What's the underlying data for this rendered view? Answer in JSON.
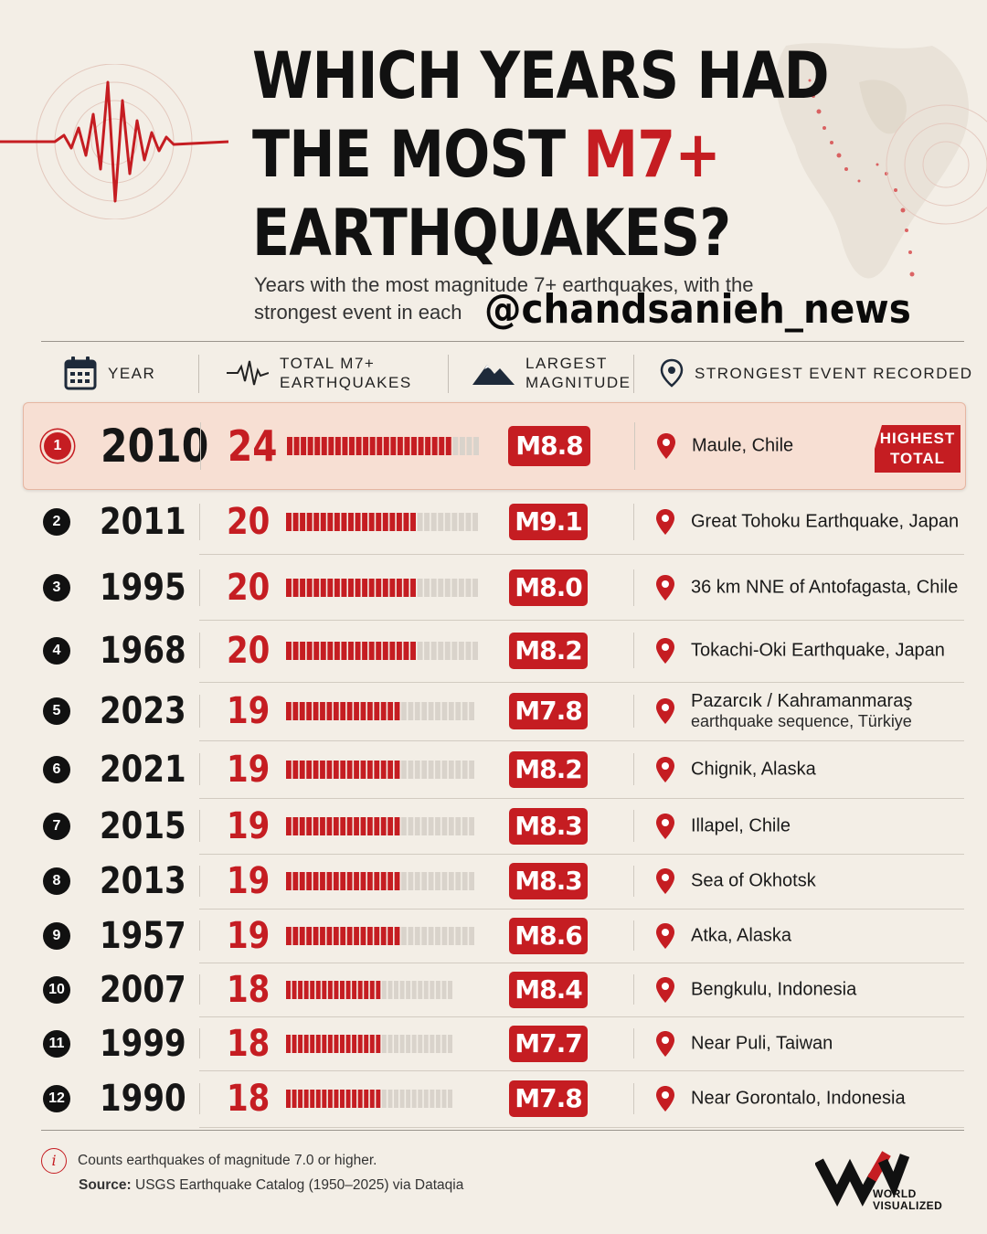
{
  "header": {
    "title_line1": "WHICH YEARS HAD",
    "title_line2_pre": "THE MOST ",
    "title_line2_accent": "M7+",
    "title_line3": "EARTHQUAKES?",
    "subtitle": "Years with the most magnitude 7+ earthquakes, with the strongest event in each",
    "watermark": "@chandsanieh_news"
  },
  "columns": {
    "year": "YEAR",
    "total_l1": "TOTAL M7+",
    "total_l2": "EARTHQUAKES",
    "largest_l1": "LARGEST",
    "largest_l2": "MAGNITUDE",
    "strongest": "STRONGEST EVENT RECORDED"
  },
  "highlight_tag": {
    "line1": "HIGHEST",
    "line2": "TOTAL"
  },
  "chart_data": {
    "type": "table",
    "bar_max": 24,
    "rows": [
      {
        "rank": "1",
        "year": "2010",
        "count": 24,
        "magnitude": "M8.8",
        "place": "Maule, Chile",
        "place2": ""
      },
      {
        "rank": "2",
        "year": "2011",
        "count": 20,
        "magnitude": "M9.1",
        "place": "Great Tohoku Earthquake, Japan",
        "place2": ""
      },
      {
        "rank": "3",
        "year": "1995",
        "count": 20,
        "magnitude": "M8.0",
        "place": "36 km NNE of Antofagasta, Chile",
        "place2": ""
      },
      {
        "rank": "4",
        "year": "1968",
        "count": 20,
        "magnitude": "M8.2",
        "place": "Tokachi-Oki Earthquake, Japan",
        "place2": ""
      },
      {
        "rank": "5",
        "year": "2023",
        "count": 19,
        "magnitude": "M7.8",
        "place": "Pazarcık / Kahramanmaraş",
        "place2": "earthquake sequence, Türkiye"
      },
      {
        "rank": "6",
        "year": "2021",
        "count": 19,
        "magnitude": "M8.2",
        "place": "Chignik, Alaska",
        "place2": ""
      },
      {
        "rank": "7",
        "year": "2015",
        "count": 19,
        "magnitude": "M8.3",
        "place": "Illapel, Chile",
        "place2": ""
      },
      {
        "rank": "8",
        "year": "2013",
        "count": 19,
        "magnitude": "M8.3",
        "place": "Sea of Okhotsk",
        "place2": ""
      },
      {
        "rank": "9",
        "year": "1957",
        "count": 19,
        "magnitude": "M8.6",
        "place": "Atka, Alaska",
        "place2": ""
      },
      {
        "rank": "10",
        "year": "2007",
        "count": 18,
        "magnitude": "M8.4",
        "place": "Bengkulu, Indonesia",
        "place2": ""
      },
      {
        "rank": "11",
        "year": "1999",
        "count": 18,
        "magnitude": "M7.7",
        "place": "Near Puli, Taiwan",
        "place2": ""
      },
      {
        "rank": "12",
        "year": "1990",
        "count": 18,
        "magnitude": "M7.8",
        "place": "Near Gorontalo, Indonesia",
        "place2": ""
      }
    ]
  },
  "footer": {
    "note": "Counts earthquakes of magnitude 7.0 or higher.",
    "source_label": "Source:",
    "source_text": " USGS Earthquake Catalog (1950–2025) via Dataqia",
    "logo_line1": "WORLD",
    "logo_line2": "VISUALIZED"
  },
  "colors": {
    "accent": "#c51d22",
    "background": "#f3eee6",
    "highlight": "#f7dfd3"
  },
  "icons": [
    "seismograph-icon",
    "calendar-icon",
    "pulse-icon",
    "mountain-icon",
    "location-icon",
    "info-icon"
  ]
}
